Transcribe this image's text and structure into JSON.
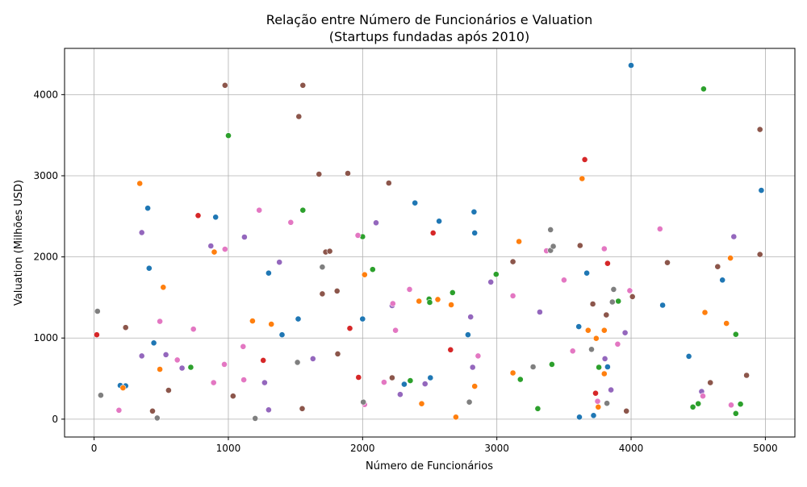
{
  "chart_data": {
    "type": "scatter",
    "title": "Relação entre Número de Funcionários e Valuation",
    "subtitle": "(Startups fundadas após 2010)",
    "xlabel": "Número de Funcionários",
    "ylabel": "Valuation (Milhões USD)",
    "xlim": [
      -220,
      5220
    ],
    "ylim": [
      -220,
      4570
    ],
    "xticks": [
      0,
      1000,
      2000,
      3000,
      4000,
      5000
    ],
    "yticks": [
      0,
      1000,
      2000,
      3000,
      4000
    ],
    "xtick_labels": [
      "0",
      "1000",
      "2000",
      "3000",
      "4000",
      "5000"
    ],
    "ytick_labels": [
      "0",
      "1000",
      "2000",
      "3000",
      "4000"
    ],
    "grid": true,
    "legend": "none",
    "colors": {
      "blue": "#1f77b4",
      "orange": "#ff7f0e",
      "green": "#2ca02c",
      "red": "#d62728",
      "purple": "#9467bd",
      "brown": "#8c564b",
      "pink": "#e377c2",
      "gray": "#7f7f7f"
    },
    "points": [
      {
        "x": 400,
        "y": 2600,
        "c": "blue"
      },
      {
        "x": 905,
        "y": 2490,
        "c": "blue"
      },
      {
        "x": 410,
        "y": 1860,
        "c": "blue"
      },
      {
        "x": 445,
        "y": 940,
        "c": "blue"
      },
      {
        "x": 195,
        "y": 415,
        "c": "blue"
      },
      {
        "x": 235,
        "y": 410,
        "c": "blue"
      },
      {
        "x": 1300,
        "y": 1800,
        "c": "blue"
      },
      {
        "x": 1400,
        "y": 1040,
        "c": "blue"
      },
      {
        "x": 1520,
        "y": 1235,
        "c": "blue"
      },
      {
        "x": 2000,
        "y": 1235,
        "c": "blue"
      },
      {
        "x": 2390,
        "y": 2665,
        "c": "blue"
      },
      {
        "x": 2570,
        "y": 2440,
        "c": "blue"
      },
      {
        "x": 2830,
        "y": 2555,
        "c": "blue"
      },
      {
        "x": 2835,
        "y": 2295,
        "c": "blue"
      },
      {
        "x": 2785,
        "y": 1040,
        "c": "blue"
      },
      {
        "x": 2310,
        "y": 430,
        "c": "blue"
      },
      {
        "x": 2505,
        "y": 510,
        "c": "blue"
      },
      {
        "x": 3610,
        "y": 1140,
        "c": "blue"
      },
      {
        "x": 3670,
        "y": 1800,
        "c": "blue"
      },
      {
        "x": 3825,
        "y": 645,
        "c": "blue"
      },
      {
        "x": 3615,
        "y": 25,
        "c": "blue"
      },
      {
        "x": 3720,
        "y": 45,
        "c": "blue"
      },
      {
        "x": 4000,
        "y": 4360,
        "c": "blue"
      },
      {
        "x": 4235,
        "y": 1405,
        "c": "blue"
      },
      {
        "x": 4430,
        "y": 775,
        "c": "blue"
      },
      {
        "x": 4680,
        "y": 1715,
        "c": "blue"
      },
      {
        "x": 4970,
        "y": 2820,
        "c": "blue"
      },
      {
        "x": 340,
        "y": 2905,
        "c": "orange"
      },
      {
        "x": 515,
        "y": 1625,
        "c": "orange"
      },
      {
        "x": 490,
        "y": 615,
        "c": "orange"
      },
      {
        "x": 215,
        "y": 385,
        "c": "orange"
      },
      {
        "x": 895,
        "y": 2060,
        "c": "orange"
      },
      {
        "x": 1180,
        "y": 1210,
        "c": "orange"
      },
      {
        "x": 1320,
        "y": 1170,
        "c": "orange"
      },
      {
        "x": 2015,
        "y": 1780,
        "c": "orange"
      },
      {
        "x": 2420,
        "y": 1455,
        "c": "orange"
      },
      {
        "x": 2560,
        "y": 1475,
        "c": "orange"
      },
      {
        "x": 2660,
        "y": 1410,
        "c": "orange"
      },
      {
        "x": 2440,
        "y": 190,
        "c": "orange"
      },
      {
        "x": 2695,
        "y": 25,
        "c": "orange"
      },
      {
        "x": 2835,
        "y": 405,
        "c": "orange"
      },
      {
        "x": 3120,
        "y": 570,
        "c": "orange"
      },
      {
        "x": 3165,
        "y": 2190,
        "c": "orange"
      },
      {
        "x": 3635,
        "y": 2965,
        "c": "orange"
      },
      {
        "x": 3680,
        "y": 1095,
        "c": "orange"
      },
      {
        "x": 3740,
        "y": 995,
        "c": "orange"
      },
      {
        "x": 3800,
        "y": 1095,
        "c": "orange"
      },
      {
        "x": 3800,
        "y": 560,
        "c": "orange"
      },
      {
        "x": 3755,
        "y": 150,
        "c": "orange"
      },
      {
        "x": 4550,
        "y": 1315,
        "c": "orange"
      },
      {
        "x": 4710,
        "y": 1180,
        "c": "orange"
      },
      {
        "x": 4740,
        "y": 1985,
        "c": "orange"
      },
      {
        "x": 1000,
        "y": 3495,
        "c": "green"
      },
      {
        "x": 1555,
        "y": 2575,
        "c": "green"
      },
      {
        "x": 2000,
        "y": 2250,
        "c": "green"
      },
      {
        "x": 2075,
        "y": 1845,
        "c": "green"
      },
      {
        "x": 2495,
        "y": 1480,
        "c": "green"
      },
      {
        "x": 2500,
        "y": 1440,
        "c": "green"
      },
      {
        "x": 2670,
        "y": 1560,
        "c": "green"
      },
      {
        "x": 2995,
        "y": 1785,
        "c": "green"
      },
      {
        "x": 2355,
        "y": 475,
        "c": "green"
      },
      {
        "x": 3175,
        "y": 490,
        "c": "green"
      },
      {
        "x": 3305,
        "y": 130,
        "c": "green"
      },
      {
        "x": 3410,
        "y": 675,
        "c": "green"
      },
      {
        "x": 3760,
        "y": 640,
        "c": "green"
      },
      {
        "x": 3905,
        "y": 1455,
        "c": "green"
      },
      {
        "x": 720,
        "y": 640,
        "c": "green"
      },
      {
        "x": 4540,
        "y": 4070,
        "c": "green"
      },
      {
        "x": 4460,
        "y": 150,
        "c": "green"
      },
      {
        "x": 4500,
        "y": 190,
        "c": "green"
      },
      {
        "x": 4780,
        "y": 1045,
        "c": "green"
      },
      {
        "x": 4815,
        "y": 185,
        "c": "green"
      },
      {
        "x": 4780,
        "y": 70,
        "c": "green"
      },
      {
        "x": 20,
        "y": 1040,
        "c": "red"
      },
      {
        "x": 775,
        "y": 2510,
        "c": "red"
      },
      {
        "x": 1260,
        "y": 725,
        "c": "red"
      },
      {
        "x": 1905,
        "y": 1120,
        "c": "red"
      },
      {
        "x": 1970,
        "y": 515,
        "c": "red"
      },
      {
        "x": 2525,
        "y": 2295,
        "c": "red"
      },
      {
        "x": 2655,
        "y": 855,
        "c": "red"
      },
      {
        "x": 3655,
        "y": 3200,
        "c": "red"
      },
      {
        "x": 3825,
        "y": 1920,
        "c": "red"
      },
      {
        "x": 3735,
        "y": 320,
        "c": "red"
      },
      {
        "x": 355,
        "y": 2300,
        "c": "purple"
      },
      {
        "x": 355,
        "y": 780,
        "c": "purple"
      },
      {
        "x": 535,
        "y": 795,
        "c": "purple"
      },
      {
        "x": 655,
        "y": 630,
        "c": "purple"
      },
      {
        "x": 870,
        "y": 2135,
        "c": "purple"
      },
      {
        "x": 1120,
        "y": 2245,
        "c": "purple"
      },
      {
        "x": 1270,
        "y": 450,
        "c": "purple"
      },
      {
        "x": 1300,
        "y": 115,
        "c": "purple"
      },
      {
        "x": 1380,
        "y": 1935,
        "c": "purple"
      },
      {
        "x": 1630,
        "y": 745,
        "c": "purple"
      },
      {
        "x": 2100,
        "y": 2420,
        "c": "purple"
      },
      {
        "x": 2220,
        "y": 1400,
        "c": "purple"
      },
      {
        "x": 2280,
        "y": 305,
        "c": "purple"
      },
      {
        "x": 2465,
        "y": 435,
        "c": "purple"
      },
      {
        "x": 2805,
        "y": 1260,
        "c": "purple"
      },
      {
        "x": 2820,
        "y": 640,
        "c": "purple"
      },
      {
        "x": 2955,
        "y": 1690,
        "c": "purple"
      },
      {
        "x": 3320,
        "y": 1320,
        "c": "purple"
      },
      {
        "x": 3805,
        "y": 745,
        "c": "purple"
      },
      {
        "x": 3850,
        "y": 360,
        "c": "purple"
      },
      {
        "x": 3955,
        "y": 1065,
        "c": "purple"
      },
      {
        "x": 4525,
        "y": 340,
        "c": "purple"
      },
      {
        "x": 4765,
        "y": 2250,
        "c": "purple"
      },
      {
        "x": 235,
        "y": 1130,
        "c": "brown"
      },
      {
        "x": 435,
        "y": 100,
        "c": "brown"
      },
      {
        "x": 555,
        "y": 355,
        "c": "brown"
      },
      {
        "x": 975,
        "y": 4115,
        "c": "brown"
      },
      {
        "x": 1035,
        "y": 285,
        "c": "brown"
      },
      {
        "x": 1525,
        "y": 3730,
        "c": "brown"
      },
      {
        "x": 1555,
        "y": 4115,
        "c": "brown"
      },
      {
        "x": 1550,
        "y": 130,
        "c": "brown"
      },
      {
        "x": 1675,
        "y": 3020,
        "c": "brown"
      },
      {
        "x": 1700,
        "y": 1545,
        "c": "brown"
      },
      {
        "x": 1725,
        "y": 2060,
        "c": "brown"
      },
      {
        "x": 1755,
        "y": 2070,
        "c": "brown"
      },
      {
        "x": 1810,
        "y": 1580,
        "c": "brown"
      },
      {
        "x": 1815,
        "y": 805,
        "c": "brown"
      },
      {
        "x": 1890,
        "y": 3030,
        "c": "brown"
      },
      {
        "x": 2195,
        "y": 2910,
        "c": "brown"
      },
      {
        "x": 2220,
        "y": 510,
        "c": "brown"
      },
      {
        "x": 3120,
        "y": 1940,
        "c": "brown"
      },
      {
        "x": 3620,
        "y": 2140,
        "c": "brown"
      },
      {
        "x": 3715,
        "y": 1420,
        "c": "brown"
      },
      {
        "x": 3815,
        "y": 1285,
        "c": "brown"
      },
      {
        "x": 3965,
        "y": 100,
        "c": "brown"
      },
      {
        "x": 4010,
        "y": 1510,
        "c": "brown"
      },
      {
        "x": 4270,
        "y": 1930,
        "c": "brown"
      },
      {
        "x": 4590,
        "y": 450,
        "c": "brown"
      },
      {
        "x": 4645,
        "y": 1880,
        "c": "brown"
      },
      {
        "x": 4860,
        "y": 540,
        "c": "brown"
      },
      {
        "x": 4960,
        "y": 3570,
        "c": "brown"
      },
      {
        "x": 4960,
        "y": 2030,
        "c": "brown"
      },
      {
        "x": 185,
        "y": 110,
        "c": "pink"
      },
      {
        "x": 490,
        "y": 1205,
        "c": "pink"
      },
      {
        "x": 620,
        "y": 730,
        "c": "pink"
      },
      {
        "x": 740,
        "y": 1110,
        "c": "pink"
      },
      {
        "x": 890,
        "y": 450,
        "c": "pink"
      },
      {
        "x": 970,
        "y": 675,
        "c": "pink"
      },
      {
        "x": 975,
        "y": 2095,
        "c": "pink"
      },
      {
        "x": 1110,
        "y": 895,
        "c": "pink"
      },
      {
        "x": 1115,
        "y": 485,
        "c": "pink"
      },
      {
        "x": 1230,
        "y": 2575,
        "c": "pink"
      },
      {
        "x": 1465,
        "y": 2425,
        "c": "pink"
      },
      {
        "x": 1965,
        "y": 2265,
        "c": "pink"
      },
      {
        "x": 2015,
        "y": 180,
        "c": "pink"
      },
      {
        "x": 2160,
        "y": 455,
        "c": "pink"
      },
      {
        "x": 2225,
        "y": 1425,
        "c": "pink"
      },
      {
        "x": 2245,
        "y": 1095,
        "c": "pink"
      },
      {
        "x": 2350,
        "y": 1600,
        "c": "pink"
      },
      {
        "x": 2860,
        "y": 780,
        "c": "pink"
      },
      {
        "x": 3120,
        "y": 1520,
        "c": "pink"
      },
      {
        "x": 3370,
        "y": 2075,
        "c": "pink"
      },
      {
        "x": 3500,
        "y": 1715,
        "c": "pink"
      },
      {
        "x": 3565,
        "y": 840,
        "c": "pink"
      },
      {
        "x": 3750,
        "y": 220,
        "c": "pink"
      },
      {
        "x": 3800,
        "y": 2100,
        "c": "pink"
      },
      {
        "x": 3900,
        "y": 925,
        "c": "pink"
      },
      {
        "x": 3990,
        "y": 1585,
        "c": "pink"
      },
      {
        "x": 4215,
        "y": 2345,
        "c": "pink"
      },
      {
        "x": 4535,
        "y": 285,
        "c": "pink"
      },
      {
        "x": 4745,
        "y": 175,
        "c": "pink"
      },
      {
        "x": 25,
        "y": 1330,
        "c": "gray"
      },
      {
        "x": 50,
        "y": 295,
        "c": "gray"
      },
      {
        "x": 470,
        "y": 15,
        "c": "gray"
      },
      {
        "x": 1200,
        "y": 10,
        "c": "gray"
      },
      {
        "x": 1515,
        "y": 700,
        "c": "gray"
      },
      {
        "x": 1700,
        "y": 1875,
        "c": "gray"
      },
      {
        "x": 2005,
        "y": 210,
        "c": "gray"
      },
      {
        "x": 2795,
        "y": 210,
        "c": "gray"
      },
      {
        "x": 3270,
        "y": 645,
        "c": "gray"
      },
      {
        "x": 3400,
        "y": 2335,
        "c": "gray"
      },
      {
        "x": 3400,
        "y": 2080,
        "c": "gray"
      },
      {
        "x": 3420,
        "y": 2130,
        "c": "gray"
      },
      {
        "x": 3705,
        "y": 860,
        "c": "gray"
      },
      {
        "x": 3820,
        "y": 195,
        "c": "gray"
      },
      {
        "x": 3860,
        "y": 1445,
        "c": "gray"
      },
      {
        "x": 3870,
        "y": 1600,
        "c": "gray"
      }
    ]
  }
}
